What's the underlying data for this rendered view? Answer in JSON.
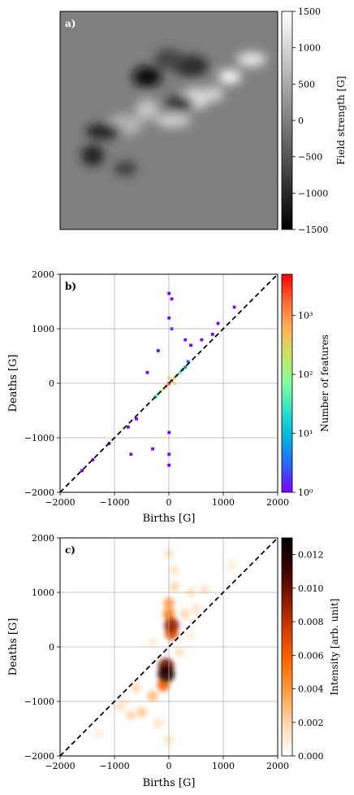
{
  "chart_data": [
    {
      "panel": "a)",
      "type": "heatmap",
      "description_label": "a)",
      "colorbar": {
        "label": "Field strength [G]",
        "ticks": [
          "1500",
          "1000",
          "500",
          "0",
          "−500",
          "−1000",
          "−1500"
        ],
        "tick_values": [
          1500,
          1000,
          500,
          0,
          -500,
          -1000,
          -1500
        ],
        "range": [
          -1500,
          1500
        ],
        "colormap": "gray",
        "colors": [
          "#000000",
          "#ffffff"
        ]
      },
      "background_value": 0,
      "positive_regions": [
        {
          "x": 0.78,
          "y": 0.3,
          "value": 1400
        },
        {
          "x": 0.62,
          "y": 0.4,
          "value": 1100
        },
        {
          "x": 0.52,
          "y": 0.5,
          "value": 900
        },
        {
          "x": 0.4,
          "y": 0.45,
          "value": 800
        },
        {
          "x": 0.88,
          "y": 0.22,
          "value": 1200
        },
        {
          "x": 0.3,
          "y": 0.52,
          "value": 600
        },
        {
          "x": 0.7,
          "y": 0.38,
          "value": 1000
        }
      ],
      "negative_regions": [
        {
          "x": 0.4,
          "y": 0.3,
          "value": -1400
        },
        {
          "x": 0.2,
          "y": 0.55,
          "value": -1200
        },
        {
          "x": 0.15,
          "y": 0.66,
          "value": -1100
        },
        {
          "x": 0.55,
          "y": 0.42,
          "value": -900
        },
        {
          "x": 0.6,
          "y": 0.25,
          "value": -1000
        },
        {
          "x": 0.3,
          "y": 0.72,
          "value": -800
        },
        {
          "x": 0.5,
          "y": 0.22,
          "value": -700
        }
      ]
    },
    {
      "panel": "b)",
      "type": "heatmap",
      "description_label": "b)",
      "xlabel": "Births [G]",
      "ylabel": "Deaths [G]",
      "xlim": [
        -2000,
        2000
      ],
      "ylim": [
        -2000,
        2000
      ],
      "xticks": [
        "−2000",
        "−1000",
        "0",
        "1000",
        "2000"
      ],
      "yticks": [
        "2000",
        "1000",
        "0",
        "−1000",
        "−2000"
      ],
      "grid": true,
      "diagonal": "dashed y = x",
      "colorbar": {
        "label": "Number of features",
        "scale": "log",
        "ticks": [
          "10³",
          "10²",
          "10¹",
          "10⁰"
        ],
        "tick_values": [
          1000,
          100,
          10,
          1
        ],
        "range": [
          1,
          5000
        ],
        "colormap": "rainbow",
        "colors": [
          "#7f00ff",
          "#2a64f6",
          "#00b3e0",
          "#2ee2c8",
          "#80ff9a",
          "#c8e565",
          "#ffb35a",
          "#ff6a35",
          "#ff0000"
        ]
      },
      "bins": [
        {
          "x": 0,
          "y": 0,
          "count": 3000
        },
        {
          "x": 50,
          "y": 50,
          "count": 1500
        },
        {
          "x": -50,
          "y": -50,
          "count": 1200
        },
        {
          "x": 100,
          "y": 100,
          "count": 400
        },
        {
          "x": -100,
          "y": -100,
          "count": 300
        },
        {
          "x": 0,
          "y": 100,
          "count": 200
        },
        {
          "x": 100,
          "y": 0,
          "count": 200
        },
        {
          "x": 150,
          "y": 150,
          "count": 100
        },
        {
          "x": -150,
          "y": -150,
          "count": 90
        },
        {
          "x": 200,
          "y": 200,
          "count": 40
        },
        {
          "x": -200,
          "y": -200,
          "count": 35
        },
        {
          "x": 250,
          "y": 250,
          "count": 15
        },
        {
          "x": -250,
          "y": -250,
          "count": 12
        },
        {
          "x": 300,
          "y": 300,
          "count": 6
        },
        {
          "x": 350,
          "y": 400,
          "count": 3
        },
        {
          "x": 0,
          "y": 1650,
          "count": 1
        },
        {
          "x": 50,
          "y": 1550,
          "count": 1
        },
        {
          "x": 0,
          "y": 1200,
          "count": 1
        },
        {
          "x": 50,
          "y": 1000,
          "count": 2
        },
        {
          "x": 1200,
          "y": 1400,
          "count": 1
        },
        {
          "x": 900,
          "y": 1100,
          "count": 1
        },
        {
          "x": 800,
          "y": 900,
          "count": 1
        },
        {
          "x": -1600,
          "y": -1600,
          "count": 1
        },
        {
          "x": -1400,
          "y": -1400,
          "count": 1
        },
        {
          "x": -1100,
          "y": -1100,
          "count": 1
        },
        {
          "x": -750,
          "y": -800,
          "count": 1
        },
        {
          "x": -600,
          "y": -650,
          "count": 1
        },
        {
          "x": 0,
          "y": -1500,
          "count": 1
        },
        {
          "x": 0,
          "y": -1300,
          "count": 1
        },
        {
          "x": 0,
          "y": -900,
          "count": 1
        },
        {
          "x": -300,
          "y": -1200,
          "count": 1
        },
        {
          "x": -700,
          "y": -1300,
          "count": 1
        },
        {
          "x": -400,
          "y": 200,
          "count": 1
        },
        {
          "x": -200,
          "y": 600,
          "count": 1
        },
        {
          "x": 300,
          "y": 800,
          "count": 1
        },
        {
          "x": 400,
          "y": 700,
          "count": 1
        },
        {
          "x": 600,
          "y": 800,
          "count": 1
        }
      ]
    },
    {
      "panel": "c)",
      "type": "heatmap",
      "description_label": "c)",
      "xlabel": "Births [G]",
      "ylabel": "Deaths [G]",
      "xlim": [
        -2000,
        2000
      ],
      "ylim": [
        -2000,
        2000
      ],
      "xticks": [
        "−2000",
        "−1000",
        "0",
        "1000",
        "2000"
      ],
      "yticks": [
        "2000",
        "1000",
        "0",
        "−1000",
        "−2000"
      ],
      "grid": true,
      "diagonal": "dashed y = x",
      "colorbar": {
        "label": "Intensity [arb. unit]",
        "ticks": [
          "0.012",
          "0.010",
          "0.008",
          "0.006",
          "0.004",
          "0.002",
          "0.000"
        ],
        "tick_values": [
          0.012,
          0.01,
          0.008,
          0.006,
          0.004,
          0.002,
          0.0
        ],
        "range": [
          0,
          0.013
        ],
        "colormap": "gist_heat_r",
        "colors": [
          "#ffffff",
          "#ffd9b0",
          "#ffa24d",
          "#ff6a00",
          "#d63f00",
          "#8a1a00",
          "#3d0000",
          "#000000"
        ]
      },
      "blobs": [
        {
          "x": -50,
          "y": -500,
          "intensity": 0.012
        },
        {
          "x": -50,
          "y": -350,
          "intensity": 0.01
        },
        {
          "x": 50,
          "y": 400,
          "intensity": 0.009
        },
        {
          "x": 50,
          "y": 250,
          "intensity": 0.007
        },
        {
          "x": -100,
          "y": -700,
          "intensity": 0.006
        },
        {
          "x": 0,
          "y": 600,
          "intensity": 0.005
        },
        {
          "x": 0,
          "y": 800,
          "intensity": 0.004
        },
        {
          "x": -300,
          "y": -900,
          "intensity": 0.003
        },
        {
          "x": -500,
          "y": -1200,
          "intensity": 0.0025
        },
        {
          "x": -700,
          "y": -1250,
          "intensity": 0.002
        },
        {
          "x": -900,
          "y": -1100,
          "intensity": 0.0015
        },
        {
          "x": -600,
          "y": -750,
          "intensity": 0.002
        },
        {
          "x": 300,
          "y": 600,
          "intensity": 0.002
        },
        {
          "x": 500,
          "y": 700,
          "intensity": 0.0015
        },
        {
          "x": 400,
          "y": 1000,
          "intensity": 0.0015
        },
        {
          "x": 0,
          "y": 1700,
          "intensity": 0.0015
        },
        {
          "x": 100,
          "y": 1400,
          "intensity": 0.0015
        },
        {
          "x": 1150,
          "y": 1500,
          "intensity": 0.001
        },
        {
          "x": 650,
          "y": 1050,
          "intensity": 0.0015
        },
        {
          "x": -1300,
          "y": -1600,
          "intensity": 0.001
        },
        {
          "x": 0,
          "y": -1700,
          "intensity": 0.0015
        },
        {
          "x": -200,
          "y": -1400,
          "intensity": 0.0015
        },
        {
          "x": -800,
          "y": -1000,
          "intensity": 0.001
        },
        {
          "x": 200,
          "y": -100,
          "intensity": 0.0015
        },
        {
          "x": -300,
          "y": 100,
          "intensity": 0.001
        },
        {
          "x": 400,
          "y": 200,
          "intensity": 0.001
        },
        {
          "x": 100,
          "y": 1100,
          "intensity": 0.002
        }
      ]
    }
  ]
}
